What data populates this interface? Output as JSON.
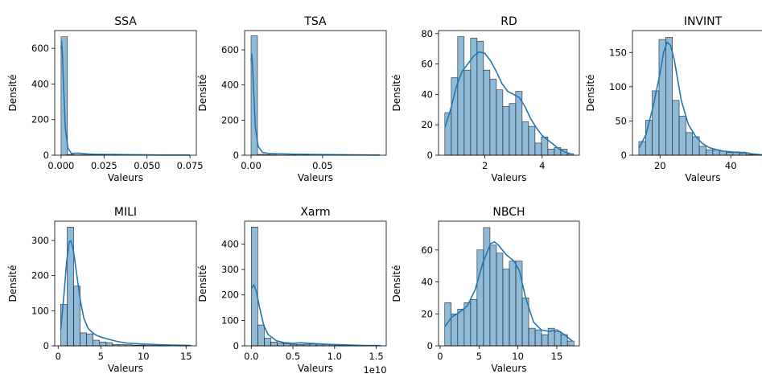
{
  "chart_data": [
    {
      "type": "bar",
      "title": "SSA",
      "xlabel": "Valeurs",
      "ylabel": "Densité",
      "xlim": [
        -0.0037,
        0.0787
      ],
      "ylim": [
        0,
        700
      ],
      "xticks": [
        0.0,
        0.025,
        0.05,
        0.075
      ],
      "xtick_labels": [
        "0.000",
        "0.025",
        "0.050",
        "0.075"
      ],
      "yticks": [
        0,
        200,
        400,
        600
      ],
      "ytick_labels": [
        "0",
        "200",
        "400",
        "600"
      ],
      "bins": {
        "start": 0.0,
        "width": 0.0037,
        "counts": [
          665,
          4,
          2,
          2,
          1,
          1,
          1,
          0,
          1,
          0,
          0,
          0,
          0,
          0,
          0,
          0,
          0,
          0,
          0,
          1
        ]
      },
      "kde": [
        [
          0.0,
          600
        ],
        [
          0.0003,
          640
        ],
        [
          0.0008,
          560
        ],
        [
          0.0015,
          380
        ],
        [
          0.0025,
          150
        ],
        [
          0.004,
          40
        ],
        [
          0.006,
          10
        ],
        [
          0.01,
          12
        ],
        [
          0.015,
          7
        ],
        [
          0.02,
          5
        ],
        [
          0.03,
          4
        ],
        [
          0.04,
          3
        ],
        [
          0.05,
          2
        ],
        [
          0.06,
          1
        ],
        [
          0.075,
          1
        ]
      ],
      "color": "#1f77b4"
    },
    {
      "type": "bar",
      "title": "TSA",
      "xlabel": "Valeurs",
      "ylabel": "Densité",
      "xlim": [
        -0.0045,
        0.0945
      ],
      "ylim": [
        0,
        710
      ],
      "xticks": [
        0.0,
        0.05
      ],
      "xtick_labels": [
        "0.00",
        "0.05"
      ],
      "yticks": [
        0,
        200,
        400,
        600
      ],
      "ytick_labels": [
        "0",
        "200",
        "400",
        "600"
      ],
      "bins": {
        "start": 0.0,
        "width": 0.0045,
        "counts": [
          680,
          5,
          3,
          2,
          1,
          1,
          1,
          0,
          1,
          0,
          0,
          0,
          0,
          0,
          0,
          0,
          0,
          0,
          0,
          1
        ]
      },
      "kde": [
        [
          0.0,
          540
        ],
        [
          0.0005,
          575
        ],
        [
          0.001,
          520
        ],
        [
          0.002,
          340
        ],
        [
          0.003,
          160
        ],
        [
          0.005,
          50
        ],
        [
          0.008,
          16
        ],
        [
          0.012,
          10
        ],
        [
          0.02,
          8
        ],
        [
          0.03,
          6
        ],
        [
          0.04,
          5
        ],
        [
          0.05,
          4
        ],
        [
          0.06,
          3
        ],
        [
          0.07,
          2
        ],
        [
          0.09,
          1
        ]
      ],
      "color": "#1f77b4"
    },
    {
      "type": "bar",
      "title": "RD",
      "xlabel": "Valeurs",
      "ylabel": "Densité",
      "xlim": [
        0.38,
        5.3
      ],
      "ylim": [
        0,
        82
      ],
      "xticks": [
        2,
        4
      ],
      "xtick_labels": [
        "2",
        "4"
      ],
      "yticks": [
        0,
        20,
        40,
        60,
        80
      ],
      "ytick_labels": [
        "0",
        "20",
        "40",
        "60",
        "80"
      ],
      "bins": {
        "start": 0.6,
        "width": 0.225,
        "counts": [
          28,
          51,
          78,
          56,
          77,
          75,
          56,
          50,
          43,
          32,
          34,
          42,
          22,
          19,
          8,
          12,
          4,
          5,
          4,
          1
        ]
      },
      "kde": [
        [
          0.6,
          18
        ],
        [
          0.8,
          30
        ],
        [
          1.0,
          45
        ],
        [
          1.2,
          55
        ],
        [
          1.4,
          60
        ],
        [
          1.6,
          65
        ],
        [
          1.8,
          68
        ],
        [
          2.0,
          67
        ],
        [
          2.2,
          62
        ],
        [
          2.4,
          55
        ],
        [
          2.6,
          47
        ],
        [
          2.8,
          42
        ],
        [
          3.0,
          40
        ],
        [
          3.2,
          38
        ],
        [
          3.4,
          32
        ],
        [
          3.6,
          24
        ],
        [
          3.8,
          18
        ],
        [
          4.0,
          13
        ],
        [
          4.2,
          10
        ],
        [
          4.4,
          7
        ],
        [
          4.6,
          4
        ],
        [
          4.8,
          2
        ],
        [
          5.0,
          1
        ]
      ],
      "color": "#1f77b4"
    },
    {
      "type": "bar",
      "title": "INVINT",
      "xlabel": "Valeurs",
      "ylabel": "Densité",
      "xlim": [
        12.2,
        52.0
      ],
      "ylim": [
        0,
        182
      ],
      "xticks": [
        20,
        40
      ],
      "xtick_labels": [
        "20",
        "40"
      ],
      "yticks": [
        0,
        50,
        100,
        150
      ],
      "ytick_labels": [
        "0",
        "50",
        "100",
        "150"
      ],
      "bins": {
        "start": 14.0,
        "width": 1.9,
        "counts": [
          20,
          51,
          94,
          169,
          172,
          80,
          57,
          33,
          27,
          13,
          8,
          8,
          6,
          4,
          5,
          3,
          1,
          1,
          1,
          0
        ]
      },
      "kde": [
        [
          14,
          10
        ],
        [
          16,
          30
        ],
        [
          18,
          70
        ],
        [
          20,
          120
        ],
        [
          21,
          150
        ],
        [
          22,
          165
        ],
        [
          23,
          160
        ],
        [
          24,
          140
        ],
        [
          25,
          110
        ],
        [
          26,
          80
        ],
        [
          28,
          45
        ],
        [
          30,
          28
        ],
        [
          32,
          17
        ],
        [
          34,
          11
        ],
        [
          36,
          8
        ],
        [
          38,
          6
        ],
        [
          40,
          5
        ],
        [
          42,
          4
        ],
        [
          44,
          4
        ],
        [
          46,
          2
        ],
        [
          48,
          1
        ],
        [
          51,
          0
        ]
      ],
      "color": "#1f77b4"
    },
    {
      "type": "bar",
      "title": "MILI",
      "xlabel": "Valeurs",
      "ylabel": "Densité",
      "xlim": [
        -0.4,
        16.2
      ],
      "ylim": [
        0,
        355
      ],
      "xticks": [
        0,
        5,
        10,
        15
      ],
      "xtick_labels": [
        "0",
        "5",
        "10",
        "15"
      ],
      "yticks": [
        0,
        100,
        200,
        300
      ],
      "ytick_labels": [
        "0",
        "100",
        "200",
        "300"
      ],
      "bins": {
        "start": 0.3,
        "width": 0.76,
        "counts": [
          118,
          338,
          170,
          37,
          34,
          16,
          11,
          9,
          4,
          3,
          3,
          2,
          2,
          1,
          1,
          1,
          1,
          0,
          1,
          1
        ]
      },
      "kde": [
        [
          0.3,
          45
        ],
        [
          0.7,
          150
        ],
        [
          1.0,
          240
        ],
        [
          1.3,
          295
        ],
        [
          1.5,
          300
        ],
        [
          1.8,
          270
        ],
        [
          2.2,
          200
        ],
        [
          2.6,
          130
        ],
        [
          3.0,
          80
        ],
        [
          3.5,
          50
        ],
        [
          4.0,
          38
        ],
        [
          4.5,
          30
        ],
        [
          5.0,
          25
        ],
        [
          6.0,
          18
        ],
        [
          7.0,
          12
        ],
        [
          8.0,
          8
        ],
        [
          10,
          5
        ],
        [
          12,
          3
        ],
        [
          14,
          2
        ],
        [
          15.6,
          1
        ]
      ],
      "color": "#1f77b4"
    },
    {
      "type": "bar",
      "title": "Xarm",
      "xlabel": "Valeurs",
      "ylabel": "Densité",
      "xlim": [
        -0.08,
        1.62
      ],
      "ylim": [
        0,
        490
      ],
      "xticks": [
        0.0,
        0.5,
        1.0,
        1.5
      ],
      "xtick_labels": [
        "0.0",
        "0.5",
        "1.0",
        "1.5"
      ],
      "yticks": [
        0,
        100,
        200,
        300,
        400
      ],
      "ytick_labels": [
        "0",
        "100",
        "200",
        "300",
        "400"
      ],
      "axis_offset_label": "1e10",
      "bins": {
        "start": 0.0,
        "width": 0.078,
        "counts": [
          467,
          82,
          30,
          15,
          10,
          8,
          6,
          5,
          6,
          7,
          6,
          5,
          4,
          3,
          3,
          2,
          2,
          1,
          1,
          1
        ]
      },
      "kde": [
        [
          0.0,
          225
        ],
        [
          0.03,
          240
        ],
        [
          0.06,
          215
        ],
        [
          0.1,
          150
        ],
        [
          0.15,
          80
        ],
        [
          0.2,
          45
        ],
        [
          0.3,
          20
        ],
        [
          0.4,
          12
        ],
        [
          0.5,
          10
        ],
        [
          0.6,
          12
        ],
        [
          0.7,
          10
        ],
        [
          0.8,
          8
        ],
        [
          0.9,
          6
        ],
        [
          1.0,
          5
        ],
        [
          1.1,
          4
        ],
        [
          1.2,
          3
        ],
        [
          1.3,
          2
        ],
        [
          1.4,
          1
        ],
        [
          1.55,
          1
        ]
      ],
      "color": "#1f77b4"
    },
    {
      "type": "bar",
      "title": "NBCH",
      "xlabel": "Valeurs",
      "ylabel": "Densité",
      "xlim": [
        -0.2,
        17.9
      ],
      "ylim": [
        0,
        78
      ],
      "xticks": [
        0,
        5,
        10,
        15
      ],
      "xtick_labels": [
        "0",
        "5",
        "10",
        "15"
      ],
      "yticks": [
        0,
        20,
        40,
        60
      ],
      "ytick_labels": [
        "0",
        "20",
        "40",
        "60"
      ],
      "bins": {
        "start": 0.6,
        "width": 0.83,
        "counts": [
          27,
          20,
          23,
          27,
          29,
          60,
          74,
          63,
          58,
          48,
          53,
          53,
          30,
          11,
          10,
          7,
          11,
          9,
          7,
          3
        ]
      },
      "kde": [
        [
          0.6,
          12
        ],
        [
          1.5,
          18
        ],
        [
          2.5,
          21
        ],
        [
          3.5,
          25
        ],
        [
          4.5,
          35
        ],
        [
          5.5,
          52
        ],
        [
          6.5,
          64
        ],
        [
          7.0,
          65
        ],
        [
          7.5,
          63
        ],
        [
          8.5,
          57
        ],
        [
          9.5,
          53
        ],
        [
          10.2,
          47
        ],
        [
          11.0,
          30
        ],
        [
          12.0,
          15
        ],
        [
          13.0,
          10
        ],
        [
          14.0,
          9
        ],
        [
          15.0,
          10
        ],
        [
          16.0,
          7
        ],
        [
          17.0,
          3
        ]
      ],
      "color": "#1f77b4"
    }
  ]
}
